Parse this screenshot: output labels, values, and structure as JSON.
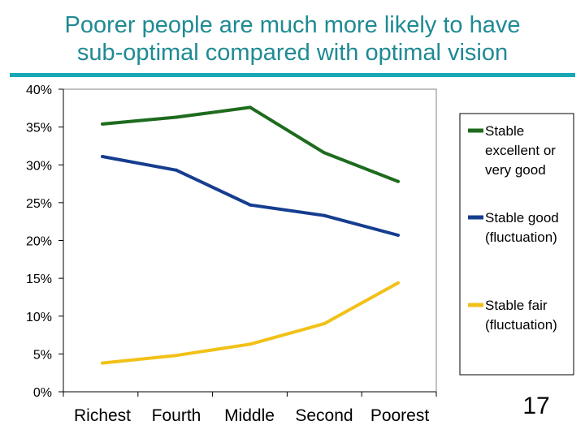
{
  "slide": {
    "title_line1": "Poorer people are much more likely to have",
    "title_line2": "sub-optimal compared with optimal vision",
    "page_number": "17"
  },
  "chart_data": {
    "type": "line",
    "title": "Poorer people are much more likely to have sub-optimal compared with optimal vision",
    "xlabel": "",
    "ylabel": "",
    "categories": [
      "Richest",
      "Fourth",
      "Middle",
      "Second",
      "Poorest"
    ],
    "ylim": [
      0,
      40
    ],
    "yticks": [
      0,
      5,
      10,
      15,
      20,
      25,
      30,
      35,
      40
    ],
    "ytick_labels": [
      "0%",
      "5%",
      "10%",
      "15%",
      "20%",
      "25%",
      "30%",
      "35%",
      "40%"
    ],
    "grid": "horizontal",
    "legend": "right",
    "series": [
      {
        "name": "Stable excellent or very good",
        "label_lines": [
          "Stable",
          "excellent or",
          "very good"
        ],
        "color": "#1e6b1e",
        "values": [
          35.4,
          36.3,
          37.6,
          31.6,
          27.8
        ]
      },
      {
        "name": "Stable good (fluctuation)",
        "label_lines": [
          "Stable good",
          "(fluctuation)"
        ],
        "color": "#163d8f",
        "values": [
          31.1,
          29.3,
          24.7,
          23.3,
          20.7
        ]
      },
      {
        "name": "Stable fair (fluctuation)",
        "label_lines": [
          "Stable fair",
          "(fluctuation)"
        ],
        "color": "#f2c118",
        "values": [
          3.8,
          4.8,
          6.3,
          9.0,
          14.4
        ]
      }
    ]
  }
}
